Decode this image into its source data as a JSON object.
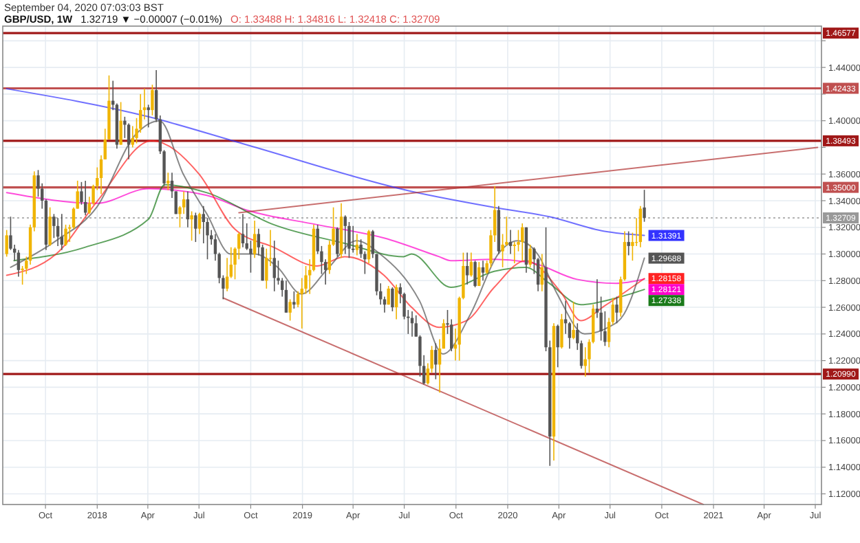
{
  "chart_data": {
    "type": "candlestick",
    "title": "GBP/USD, 1W",
    "subtitle": "September 04, 2020 07:03:03 BST",
    "annotations": [
      "1.32719 ▼ −0.00007 (−0.01%)",
      "O: 1.33488 H: 1.34816 L: 1.32418 C: 1.32709"
    ],
    "x": [
      "2017-07-24",
      "2017-07-31",
      "2017-08-07",
      "2017-08-14",
      "2017-08-21",
      "2017-08-28",
      "2017-09-04",
      "2017-09-11",
      "2017-09-18",
      "2017-09-25",
      "2017-10-02",
      "2017-10-09",
      "2017-10-16",
      "2017-10-23",
      "2017-10-30",
      "2017-11-06",
      "2017-11-13",
      "2017-11-20",
      "2017-11-27",
      "2017-12-04",
      "2017-12-11",
      "2017-12-18",
      "2017-12-25",
      "2018-01-01",
      "2018-01-08",
      "2018-01-15",
      "2018-01-22",
      "2018-01-29",
      "2018-02-05",
      "2018-02-12",
      "2018-02-19",
      "2018-02-26",
      "2018-03-05",
      "2018-03-12",
      "2018-03-19",
      "2018-03-26",
      "2018-04-02",
      "2018-04-09",
      "2018-04-16",
      "2018-04-23",
      "2018-04-30",
      "2018-05-07",
      "2018-05-14",
      "2018-05-21",
      "2018-05-28",
      "2018-06-04",
      "2018-06-11",
      "2018-06-18",
      "2018-06-25",
      "2018-07-02",
      "2018-07-09",
      "2018-07-16",
      "2018-07-23",
      "2018-07-30",
      "2018-08-06",
      "2018-08-13",
      "2018-08-20",
      "2018-08-27",
      "2018-09-03",
      "2018-09-10",
      "2018-09-17",
      "2018-09-24",
      "2018-10-01",
      "2018-10-08",
      "2018-10-15",
      "2018-10-22",
      "2018-10-29",
      "2018-11-05",
      "2018-11-12",
      "2018-11-19",
      "2018-11-26",
      "2018-12-03",
      "2018-12-10",
      "2018-12-17",
      "2018-12-24",
      "2018-12-31",
      "2019-01-07",
      "2019-01-14",
      "2019-01-21",
      "2019-01-28",
      "2019-02-04",
      "2019-02-11",
      "2019-02-18",
      "2019-02-25",
      "2019-03-04",
      "2019-03-11",
      "2019-03-18",
      "2019-03-25",
      "2019-04-01",
      "2019-04-08",
      "2019-04-15",
      "2019-04-22",
      "2019-04-29",
      "2019-05-06",
      "2019-05-13",
      "2019-05-20",
      "2019-05-27",
      "2019-06-03",
      "2019-06-10",
      "2019-06-17",
      "2019-06-24",
      "2019-07-01",
      "2019-07-08",
      "2019-07-15",
      "2019-07-22",
      "2019-07-29",
      "2019-08-05",
      "2019-08-12",
      "2019-08-19",
      "2019-08-26",
      "2019-09-02",
      "2019-09-09",
      "2019-09-16",
      "2019-09-23",
      "2019-09-30",
      "2019-10-07",
      "2019-10-14",
      "2019-10-21",
      "2019-10-28",
      "2019-11-04",
      "2019-11-11",
      "2019-11-18",
      "2019-11-25",
      "2019-12-02",
      "2019-12-09",
      "2019-12-16",
      "2019-12-23",
      "2019-12-30",
      "2020-01-06",
      "2020-01-13",
      "2020-01-20",
      "2020-01-27",
      "2020-02-03",
      "2020-02-10",
      "2020-02-17",
      "2020-02-24",
      "2020-03-02",
      "2020-03-09",
      "2020-03-16",
      "2020-03-23",
      "2020-03-30",
      "2020-04-06",
      "2020-04-13",
      "2020-04-20",
      "2020-04-27",
      "2020-05-04",
      "2020-05-11",
      "2020-05-18",
      "2020-05-25",
      "2020-06-01",
      "2020-06-08",
      "2020-06-15",
      "2020-06-22",
      "2020-06-29",
      "2020-07-06",
      "2020-07-13",
      "2020-07-20",
      "2020-07-27",
      "2020-08-03",
      "2020-08-10",
      "2020-08-17",
      "2020-08-24",
      "2020-08-31"
    ],
    "ohlc": [
      [
        1.3,
        1.318,
        1.298,
        1.314
      ],
      [
        1.314,
        1.328,
        1.303,
        1.304
      ],
      [
        1.304,
        1.307,
        1.295,
        1.301
      ],
      [
        1.301,
        1.303,
        1.283,
        1.288
      ],
      [
        1.288,
        1.291,
        1.277,
        1.289
      ],
      [
        1.289,
        1.298,
        1.285,
        1.295
      ],
      [
        1.295,
        1.322,
        1.292,
        1.32
      ],
      [
        1.32,
        1.362,
        1.317,
        1.359
      ],
      [
        1.359,
        1.363,
        1.343,
        1.349
      ],
      [
        1.349,
        1.353,
        1.334,
        1.34
      ],
      [
        1.34,
        1.341,
        1.303,
        1.307
      ],
      [
        1.307,
        1.335,
        1.306,
        1.328
      ],
      [
        1.328,
        1.33,
        1.312,
        1.321
      ],
      [
        1.321,
        1.327,
        1.306,
        1.313
      ],
      [
        1.313,
        1.33,
        1.303,
        1.307
      ],
      [
        1.307,
        1.322,
        1.306,
        1.319
      ],
      [
        1.319,
        1.322,
        1.309,
        1.32
      ],
      [
        1.32,
        1.335,
        1.319,
        1.334
      ],
      [
        1.334,
        1.355,
        1.334,
        1.347
      ],
      [
        1.347,
        1.354,
        1.337,
        1.339
      ],
      [
        1.339,
        1.355,
        1.329,
        1.331
      ],
      [
        1.331,
        1.343,
        1.33,
        1.338
      ],
      [
        1.338,
        1.352,
        1.337,
        1.351
      ],
      [
        1.351,
        1.365,
        1.348,
        1.357
      ],
      [
        1.357,
        1.374,
        1.345,
        1.371
      ],
      [
        1.371,
        1.394,
        1.371,
        1.386
      ],
      [
        1.386,
        1.434,
        1.386,
        1.415
      ],
      [
        1.415,
        1.43,
        1.408,
        1.412
      ],
      [
        1.412,
        1.413,
        1.379,
        1.382
      ],
      [
        1.382,
        1.414,
        1.382,
        1.4
      ],
      [
        1.4,
        1.403,
        1.387,
        1.397
      ],
      [
        1.397,
        1.398,
        1.371,
        1.382
      ],
      [
        1.382,
        1.396,
        1.38,
        1.387
      ],
      [
        1.387,
        1.402,
        1.383,
        1.394
      ],
      [
        1.394,
        1.42,
        1.391,
        1.408
      ],
      [
        1.408,
        1.424,
        1.401,
        1.41
      ],
      [
        1.41,
        1.412,
        1.395,
        1.408
      ],
      [
        1.408,
        1.427,
        1.404,
        1.423
      ],
      [
        1.423,
        1.438,
        1.399,
        1.401
      ],
      [
        1.401,
        1.404,
        1.375,
        1.377
      ],
      [
        1.377,
        1.378,
        1.351,
        1.353
      ],
      [
        1.353,
        1.361,
        1.348,
        1.355
      ],
      [
        1.355,
        1.361,
        1.342,
        1.347
      ],
      [
        1.347,
        1.347,
        1.33,
        1.33
      ],
      [
        1.33,
        1.336,
        1.32,
        1.335
      ],
      [
        1.335,
        1.347,
        1.33,
        1.341
      ],
      [
        1.341,
        1.347,
        1.32,
        1.326
      ],
      [
        1.326,
        1.332,
        1.31,
        1.329
      ],
      [
        1.329,
        1.331,
        1.309,
        1.319
      ],
      [
        1.319,
        1.331,
        1.315,
        1.33
      ],
      [
        1.33,
        1.336,
        1.308,
        1.324
      ],
      [
        1.324,
        1.327,
        1.296,
        1.314
      ],
      [
        1.314,
        1.318,
        1.307,
        1.311
      ],
      [
        1.311,
        1.315,
        1.295,
        1.3
      ],
      [
        1.3,
        1.301,
        1.278,
        1.282
      ],
      [
        1.282,
        1.284,
        1.266,
        1.274
      ],
      [
        1.274,
        1.297,
        1.272,
        1.283
      ],
      [
        1.283,
        1.305,
        1.282,
        1.292
      ],
      [
        1.292,
        1.305,
        1.281,
        1.304
      ],
      [
        1.304,
        1.316,
        1.296,
        1.315
      ],
      [
        1.315,
        1.33,
        1.305,
        1.308
      ],
      [
        1.308,
        1.323,
        1.303,
        1.304
      ],
      [
        1.304,
        1.31,
        1.286,
        1.3
      ],
      [
        1.3,
        1.325,
        1.297,
        1.315
      ],
      [
        1.315,
        1.319,
        1.299,
        1.305
      ],
      [
        1.305,
        1.307,
        1.28,
        1.28
      ],
      [
        1.28,
        1.304,
        1.274,
        1.297
      ],
      [
        1.297,
        1.318,
        1.291,
        1.297
      ],
      [
        1.297,
        1.31,
        1.272,
        1.282
      ],
      [
        1.282,
        1.295,
        1.277,
        1.28
      ],
      [
        1.28,
        1.282,
        1.268,
        1.273
      ],
      [
        1.273,
        1.28,
        1.256,
        1.256
      ],
      [
        1.256,
        1.266,
        1.25,
        1.264
      ],
      [
        1.264,
        1.272,
        1.259,
        1.262
      ],
      [
        1.262,
        1.272,
        1.26,
        1.27
      ],
      [
        1.27,
        1.282,
        1.244,
        1.274
      ],
      [
        1.274,
        1.291,
        1.27,
        1.284
      ],
      [
        1.284,
        1.296,
        1.27,
        1.288
      ],
      [
        1.288,
        1.322,
        1.287,
        1.319
      ],
      [
        1.319,
        1.322,
        1.3,
        1.302
      ],
      [
        1.302,
        1.306,
        1.285,
        1.294
      ],
      [
        1.294,
        1.296,
        1.277,
        1.288
      ],
      [
        1.288,
        1.31,
        1.285,
        1.307
      ],
      [
        1.307,
        1.335,
        1.306,
        1.319
      ],
      [
        1.319,
        1.32,
        1.298,
        1.3
      ],
      [
        1.3,
        1.338,
        1.297,
        1.328
      ],
      [
        1.328,
        1.329,
        1.3,
        1.321
      ],
      [
        1.321,
        1.324,
        1.297,
        1.304
      ],
      [
        1.304,
        1.321,
        1.301,
        1.303
      ],
      [
        1.303,
        1.315,
        1.299,
        1.307
      ],
      [
        1.307,
        1.311,
        1.297,
        1.3
      ],
      [
        1.3,
        1.302,
        1.285,
        1.296
      ],
      [
        1.296,
        1.318,
        1.293,
        1.317
      ],
      [
        1.317,
        1.318,
        1.297,
        1.3
      ],
      [
        1.3,
        1.3,
        1.269,
        1.272
      ],
      [
        1.272,
        1.278,
        1.262,
        1.266
      ],
      [
        1.266,
        1.268,
        1.256,
        1.262
      ],
      [
        1.262,
        1.276,
        1.262,
        1.274
      ],
      [
        1.274,
        1.275,
        1.257,
        1.26
      ],
      [
        1.26,
        1.277,
        1.251,
        1.275
      ],
      [
        1.275,
        1.278,
        1.263,
        1.27
      ],
      [
        1.27,
        1.271,
        1.251,
        1.253
      ],
      [
        1.253,
        1.258,
        1.24,
        1.252
      ],
      [
        1.252,
        1.257,
        1.238,
        1.248
      ],
      [
        1.248,
        1.254,
        1.238,
        1.238
      ],
      [
        1.238,
        1.239,
        1.208,
        1.216
      ],
      [
        1.216,
        1.224,
        1.202,
        1.203
      ],
      [
        1.203,
        1.218,
        1.202,
        1.214
      ],
      [
        1.214,
        1.231,
        1.211,
        1.228
      ],
      [
        1.228,
        1.233,
        1.206,
        1.217
      ],
      [
        1.217,
        1.236,
        1.196,
        1.229
      ],
      [
        1.229,
        1.251,
        1.229,
        1.248
      ],
      [
        1.248,
        1.258,
        1.24,
        1.247
      ],
      [
        1.247,
        1.251,
        1.227,
        1.229
      ],
      [
        1.229,
        1.244,
        1.22,
        1.232
      ],
      [
        1.232,
        1.268,
        1.22,
        1.267
      ],
      [
        1.267,
        1.301,
        1.266,
        1.291
      ],
      [
        1.291,
        1.301,
        1.277,
        1.284
      ],
      [
        1.284,
        1.301,
        1.283,
        1.294
      ],
      [
        1.294,
        1.295,
        1.275,
        1.276
      ],
      [
        1.276,
        1.294,
        1.276,
        1.29
      ],
      [
        1.29,
        1.295,
        1.28,
        1.286
      ],
      [
        1.286,
        1.295,
        1.285,
        1.293
      ],
      [
        1.293,
        1.318,
        1.29,
        1.314
      ],
      [
        1.314,
        1.351,
        1.309,
        1.333
      ],
      [
        1.333,
        1.336,
        1.3,
        1.302
      ],
      [
        1.302,
        1.315,
        1.29,
        1.307
      ],
      [
        1.307,
        1.328,
        1.306,
        1.309
      ],
      [
        1.309,
        1.318,
        1.3,
        1.306
      ],
      [
        1.306,
        1.309,
        1.293,
        1.307
      ],
      [
        1.307,
        1.318,
        1.302,
        1.309
      ],
      [
        1.309,
        1.323,
        1.295,
        1.32
      ],
      [
        1.32,
        1.32,
        1.286,
        1.292
      ],
      [
        1.292,
        1.307,
        1.29,
        1.304
      ],
      [
        1.304,
        1.305,
        1.285,
        1.296
      ],
      [
        1.296,
        1.297,
        1.272,
        1.277
      ],
      [
        1.277,
        1.3,
        1.272,
        1.29
      ],
      [
        1.29,
        1.32,
        1.227,
        1.23
      ],
      [
        1.23,
        1.235,
        1.141,
        1.163
      ],
      [
        1.163,
        1.248,
        1.145,
        1.246
      ],
      [
        1.246,
        1.247,
        1.215,
        1.23
      ],
      [
        1.23,
        1.255,
        1.229,
        1.251
      ],
      [
        1.251,
        1.265,
        1.24,
        1.248
      ],
      [
        1.248,
        1.249,
        1.229,
        1.237
      ],
      [
        1.237,
        1.264,
        1.236,
        1.243
      ],
      [
        1.243,
        1.248,
        1.228,
        1.233
      ],
      [
        1.233,
        1.235,
        1.214,
        1.216
      ],
      [
        1.216,
        1.23,
        1.208,
        1.221
      ],
      [
        1.221,
        1.236,
        1.211,
        1.234
      ],
      [
        1.234,
        1.262,
        1.233,
        1.259
      ],
      [
        1.259,
        1.281,
        1.252,
        1.256
      ],
      [
        1.256,
        1.268,
        1.235,
        1.242
      ],
      [
        1.242,
        1.257,
        1.231,
        1.234
      ],
      [
        1.234,
        1.252,
        1.23,
        1.249
      ],
      [
        1.249,
        1.267,
        1.247,
        1.262
      ],
      [
        1.262,
        1.268,
        1.248,
        1.256
      ],
      [
        1.256,
        1.283,
        1.253,
        1.281
      ],
      [
        1.281,
        1.317,
        1.28,
        1.309
      ],
      [
        1.309,
        1.317,
        1.299,
        1.306
      ],
      [
        1.306,
        1.316,
        1.295,
        1.309
      ],
      [
        1.309,
        1.327,
        1.306,
        1.309
      ],
      [
        1.309,
        1.336,
        1.305,
        1.334
      ],
      [
        1.33488,
        1.34816,
        1.32418,
        1.32709
      ]
    ],
    "series": [
      {
        "type": "line",
        "color": "#3333ff",
        "x": [
          "2017-07-24",
          "2018-04-02",
          "2018-09-23",
          "2019-07-14",
          "2019-12-08",
          "2020-03-15",
          "2020-06-21",
          "2020-08-31"
        ],
        "values": [
          1.424,
          1.403,
          1.382,
          1.347,
          1.335,
          1.328,
          1.317,
          1.31391
        ],
        "value_labels": [
          null,
          null,
          null,
          null,
          null,
          null,
          null,
          "1.31391"
        ]
      },
      {
        "type": "line",
        "color": "#ff00cc",
        "x": [
          "2017-07-24",
          "2017-12-31",
          "2018-04-02",
          "2018-07-15",
          "2018-09-23",
          "2019-01-27",
          "2019-05-26",
          "2019-09-01",
          "2019-09-22",
          "2019-12-08",
          "2020-02-16",
          "2020-05-03",
          "2020-07-12",
          "2020-08-31"
        ],
        "values": [
          1.346,
          1.338,
          1.349,
          1.344,
          1.333,
          1.322,
          1.312,
          1.298,
          1.295,
          1.296,
          1.293,
          1.281,
          1.278,
          1.28121
        ],
        "value_labels": [
          null,
          null,
          null,
          null,
          null,
          null,
          null,
          null,
          null,
          null,
          null,
          null,
          null,
          "1.28121"
        ]
      },
      {
        "type": "line",
        "color": "#1a7a1a",
        "x": [
          "2017-08-06",
          "2017-12-10",
          "2018-04-02",
          "2018-05-01",
          "2018-07-15",
          "2018-11-11",
          "2019-03-17",
          "2019-06-30",
          "2019-07-14",
          "2019-09-22",
          "2019-12-08",
          "2020-02-02",
          "2020-03-15",
          "2020-05-10",
          "2020-07-12",
          "2020-08-31"
        ],
        "values": [
          1.295,
          1.305,
          1.326,
          1.352,
          1.346,
          1.322,
          1.308,
          1.298,
          1.3,
          1.275,
          1.287,
          1.29,
          1.278,
          1.262,
          1.267,
          1.27338
        ],
        "value_labels": [
          null,
          null,
          null,
          null,
          null,
          null,
          null,
          null,
          null,
          null,
          null,
          null,
          null,
          null,
          null,
          "1.27338"
        ]
      },
      {
        "type": "line",
        "color": "#ff2222",
        "x": [
          "2017-07-24",
          "2017-10-20",
          "2017-12-31",
          "2018-04-08",
          "2018-07-01",
          "2018-09-02",
          "2018-11-11",
          "2019-01-27",
          "2019-03-17",
          "2019-05-26",
          "2019-07-14",
          "2019-09-01",
          "2019-10-20",
          "2019-12-08",
          "2020-02-02",
          "2020-04-05",
          "2020-05-10",
          "2020-06-21",
          "2020-08-31"
        ],
        "values": [
          1.284,
          1.3,
          1.339,
          1.385,
          1.36,
          1.319,
          1.305,
          1.291,
          1.298,
          1.284,
          1.26,
          1.245,
          1.25,
          1.275,
          1.295,
          1.271,
          1.25,
          1.261,
          1.28158
        ],
        "value_labels": [
          null,
          null,
          null,
          null,
          null,
          null,
          null,
          null,
          null,
          null,
          null,
          null,
          null,
          null,
          null,
          null,
          null,
          null,
          "1.28158"
        ]
      },
      {
        "type": "line",
        "color": "#555555",
        "x": [
          "2017-07-31",
          "2017-10-20",
          "2017-12-31",
          "2018-03-11",
          "2018-04-22",
          "2018-06-03",
          "2018-07-15",
          "2018-08-26",
          "2018-10-07",
          "2018-11-18",
          "2018-12-30",
          "2019-02-17",
          "2019-04-07",
          "2019-05-19",
          "2019-07-28",
          "2019-09-08",
          "2019-10-27",
          "2019-12-15",
          "2020-01-19",
          "2020-02-23",
          "2020-03-29",
          "2020-05-17",
          "2020-06-28",
          "2020-07-26",
          "2020-08-31"
        ],
        "values": [
          1.29,
          1.31,
          1.335,
          1.39,
          1.4,
          1.36,
          1.33,
          1.3,
          1.3,
          1.29,
          1.27,
          1.29,
          1.31,
          1.3,
          1.265,
          1.225,
          1.255,
          1.3,
          1.31,
          1.3,
          1.27,
          1.24,
          1.245,
          1.255,
          1.29688
        ],
        "value_labels": [
          null,
          null,
          null,
          null,
          null,
          null,
          null,
          null,
          null,
          null,
          null,
          null,
          null,
          null,
          null,
          null,
          null,
          null,
          null,
          null,
          null,
          null,
          null,
          null,
          "1.29688"
        ]
      },
      {
        "type": "line",
        "color": "#b03030",
        "x": [
          "2018-09-10",
          "2021-07-05"
        ],
        "values": [
          1.331,
          1.38
        ]
      },
      {
        "type": "line",
        "color": "#b03030",
        "x": [
          "2018-08-13",
          "2020-12-14"
        ],
        "values": [
          1.267,
          1.112
        ]
      }
    ],
    "ref_lines": [
      {
        "axis": "y",
        "value": 1.46577,
        "label": "1.46577",
        "color": "#a01818"
      },
      {
        "axis": "y",
        "value": 1.42433,
        "label": "1.42433",
        "color": "#c05050"
      },
      {
        "axis": "y",
        "value": 1.38493,
        "label": "1.38493",
        "color": "#a01818"
      },
      {
        "axis": "y",
        "value": 1.35,
        "label": "1.35000",
        "color": "#c05050"
      },
      {
        "axis": "y",
        "value": 1.32709,
        "label": "1.32709",
        "color": "#999999",
        "line_style": "dotted"
      },
      {
        "axis": "y",
        "value": 1.2099,
        "label": "1.20990",
        "color": "#a01818"
      }
    ],
    "xlim": [
      "2017-07-17",
      "2021-07-12"
    ],
    "xticks": [
      {
        "value": "2017-10-01",
        "label": "Oct"
      },
      {
        "value": "2018-01-01",
        "label": "2018"
      },
      {
        "value": "2018-04-01",
        "label": "Apr"
      },
      {
        "value": "2018-07-01",
        "label": "Jul"
      },
      {
        "value": "2018-10-01",
        "label": "Oct"
      },
      {
        "value": "2019-01-01",
        "label": "2019"
      },
      {
        "value": "2019-04-01",
        "label": "Apr"
      },
      {
        "value": "2019-07-01",
        "label": "Jul"
      },
      {
        "value": "2019-10-01",
        "label": "Oct"
      },
      {
        "value": "2020-01-01",
        "label": "2020"
      },
      {
        "value": "2020-04-01",
        "label": "Apr"
      },
      {
        "value": "2020-07-01",
        "label": "Jul"
      },
      {
        "value": "2020-10-01",
        "label": "Oct"
      },
      {
        "value": "2021-01-01",
        "label": "2021"
      },
      {
        "value": "2021-04-01",
        "label": "Apr"
      },
      {
        "value": "2021-07-01",
        "label": "Jul"
      }
    ],
    "ylim": [
      1.112,
      1.471
    ],
    "yticks": [
      {
        "value": 1.12,
        "label": "1.12000"
      },
      {
        "value": 1.14,
        "label": "1.14000"
      },
      {
        "value": 1.16,
        "label": "1.16000"
      },
      {
        "value": 1.18,
        "label": "1.18000"
      },
      {
        "value": 1.2,
        "label": "1.20000"
      },
      {
        "value": 1.22,
        "label": "1.22000"
      },
      {
        "value": 1.24,
        "label": "1.24000"
      },
      {
        "value": 1.26,
        "label": "1.26000"
      },
      {
        "value": 1.28,
        "label": "1.28000"
      },
      {
        "value": 1.3,
        "label": "1.30000"
      },
      {
        "value": 1.32,
        "label": "1.32000"
      },
      {
        "value": 1.34,
        "label": "1.34000"
      },
      {
        "value": 1.36,
        "label": "1.36000"
      },
      {
        "value": 1.38,
        "label": null
      },
      {
        "value": 1.4,
        "label": "1.40000"
      },
      {
        "value": 1.42,
        "label": null
      },
      {
        "value": 1.44,
        "label": "1.44000"
      },
      {
        "value": 1.46,
        "label": null
      }
    ],
    "grid": true
  }
}
